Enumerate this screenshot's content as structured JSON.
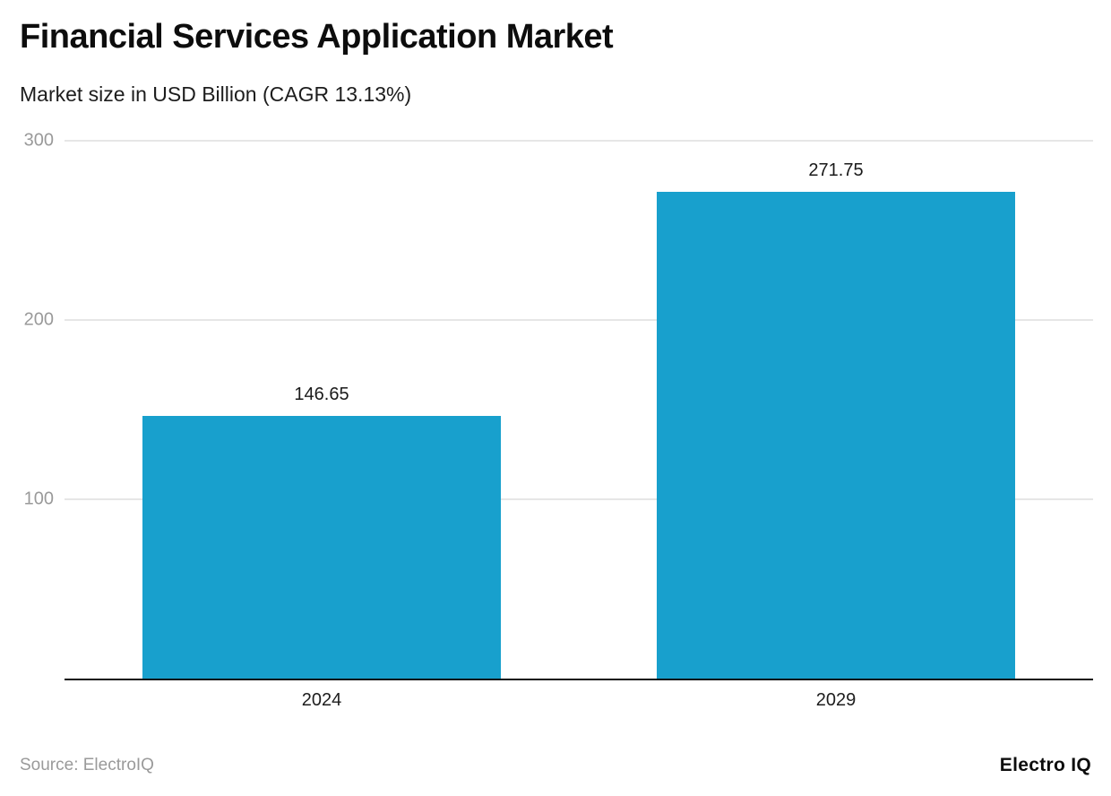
{
  "header": {
    "title": "Financial Services Application Market",
    "subtitle": "Market size in USD Billion (CAGR 13.13%)"
  },
  "footer": {
    "source": "Source: ElectroIQ",
    "brand": "Electro IQ"
  },
  "colors": {
    "bar": "#18a0cd",
    "grid": "#e6e6e6",
    "axis": "#111111",
    "tick_label": "#9a9a9a",
    "text": "#1d1d1d"
  },
  "chart_data": {
    "type": "bar",
    "categories": [
      "2024",
      "2029"
    ],
    "values": [
      146.65,
      271.75
    ],
    "value_labels": [
      "146.65",
      "271.75"
    ],
    "title": "Financial Services Application Market",
    "subtitle": "Market size in USD Billion (CAGR 13.13%)",
    "xlabel": "",
    "ylabel": "Market size in USD Billion",
    "ylim": [
      0,
      300
    ],
    "yticks": [
      100,
      200,
      300
    ],
    "grid": true,
    "legend": false,
    "bar_slot_fraction": 0.697
  }
}
